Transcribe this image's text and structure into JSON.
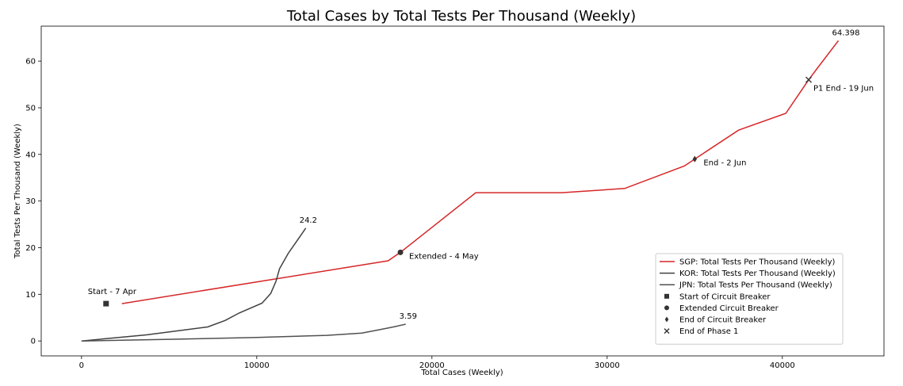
{
  "chart_data": {
    "type": "line",
    "title": "Total Cases by Total Tests Per Thousand (Weekly)",
    "xlabel": "Total Cases (Weekly)",
    "ylabel": "Total Tests Per Thousand (Weekly)",
    "xlim": [
      -2300,
      45800
    ],
    "ylim": [
      -3.2,
      67.5
    ],
    "xticks": [
      0,
      10000,
      20000,
      30000,
      40000
    ],
    "yticks": [
      0,
      10,
      20,
      30,
      40,
      50,
      60
    ],
    "grid": false,
    "legend_position": "lower right",
    "series": [
      {
        "name": "SGP: Total Tests Per Thousand (Weekly)",
        "color": "#d62728",
        "x": [
          2300,
          17500,
          18200,
          22500,
          27400,
          31000,
          34400,
          35000,
          37500,
          40200,
          41500,
          42000,
          43200
        ],
        "y": [
          8.0,
          17.2,
          19.0,
          31.8,
          31.8,
          32.7,
          37.5,
          39.0,
          45.2,
          48.8,
          56.0,
          58.5,
          64.398
        ]
      },
      {
        "name": "KOR: Total Tests Per Thousand (Weekly)",
        "color": "#404040",
        "x": [
          0,
          3700,
          7200,
          8200,
          9000,
          10300,
          10800,
          11100,
          11300,
          11800,
          12300,
          12800
        ],
        "y": [
          0,
          1.3,
          3.0,
          4.4,
          6.0,
          8.1,
          10.2,
          12.8,
          15.5,
          18.8,
          21.5,
          24.2
        ]
      },
      {
        "name": "JPN: Total Tests Per Thousand (Weekly)",
        "color": "#505050",
        "x": [
          0,
          5000,
          10000,
          14000,
          16000,
          17000,
          17800,
          18500
        ],
        "y": [
          0,
          0.35,
          0.75,
          1.2,
          1.7,
          2.4,
          3.0,
          3.59
        ]
      }
    ],
    "events": [
      {
        "label": "Start - 7 Apr",
        "marker": "square",
        "x": 1400,
        "y": 8.0
      },
      {
        "label": "Extended - 4 May",
        "marker": "circle",
        "x": 18200,
        "y": 19.0
      },
      {
        "label": "End - 2 Jun",
        "marker": "diamond",
        "x": 35000,
        "y": 39.0
      },
      {
        "label": "P1 End - 19 Jun",
        "marker": "x",
        "x": 41500,
        "y": 56.0
      }
    ],
    "end_labels": [
      {
        "label": "64.398",
        "x": 43200,
        "y": 64.398
      },
      {
        "label": "24.2",
        "x": 12800,
        "y": 24.2
      },
      {
        "label": "3.59",
        "x": 18500,
        "y": 3.59
      }
    ],
    "legend_entries": [
      {
        "label": "SGP: Total Tests Per Thousand (Weekly)",
        "kind": "line",
        "color": "#d62728"
      },
      {
        "label": "KOR: Total Tests Per Thousand (Weekly)",
        "kind": "line",
        "color": "#404040"
      },
      {
        "label": "JPN: Total Tests Per Thousand (Weekly)",
        "kind": "line",
        "color": "#505050"
      },
      {
        "label": "Start of Circuit Breaker",
        "kind": "square",
        "color": "#333333"
      },
      {
        "label": "Extended Circuit Breaker",
        "kind": "circle",
        "color": "#333333"
      },
      {
        "label": "End of Circuit Breaker",
        "kind": "diamond",
        "color": "#333333"
      },
      {
        "label": "End of Phase 1",
        "kind": "x",
        "color": "#333333"
      }
    ]
  }
}
